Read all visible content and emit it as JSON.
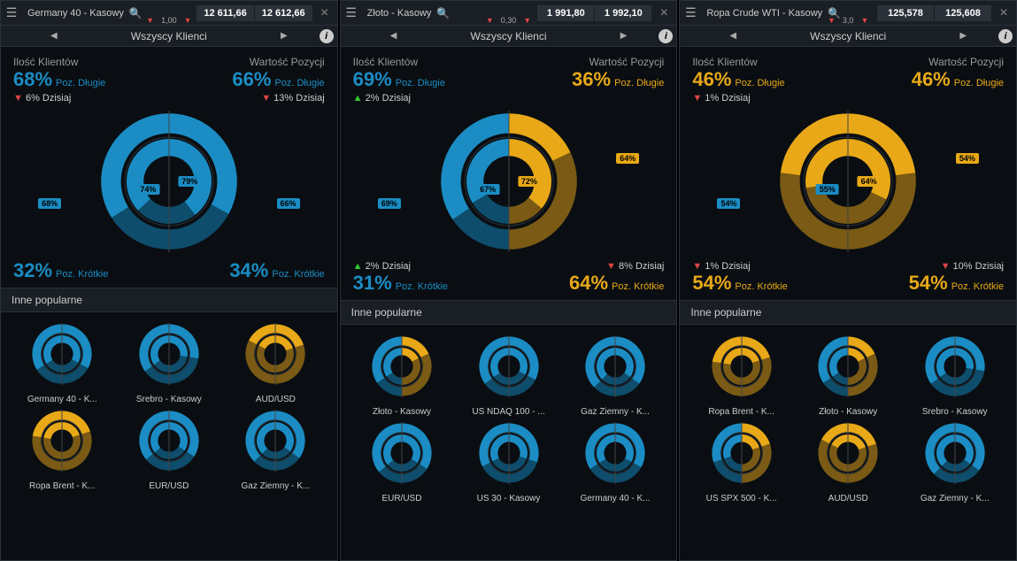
{
  "colors": {
    "blue": "#1b8dc4",
    "blueDark": "#0e4d6b",
    "yellow": "#e8a817",
    "yellowDark": "#7a5a15",
    "bg": "#0a0e12",
    "ring": "#2a3138"
  },
  "labels": {
    "clients": "Wszyscy Klienci",
    "qtyTitle": "Ilość Klientów",
    "valTitle": "Wartość Pozycji",
    "long": "Poz. Długie",
    "short": "Poz. Krótkie",
    "today": "Dzisiaj",
    "popular": "Inne popularne"
  },
  "panels": [
    {
      "instrument": "Germany 40 - Kasowy",
      "priceA": "12 611,66",
      "priceB": "12 612,66",
      "spread": "1,00",
      "qtyLong": 68,
      "valLong": 66,
      "qtyShort": 32,
      "valShort": 34,
      "qtyToday": -6,
      "valToday": -13,
      "innerLeft": 74,
      "innerRight": 79,
      "outerLeftBadge": 68,
      "outerRightBadge": 66,
      "popular": [
        {
          "name": "Germany 40 - K...",
          "a": 68,
          "b": 66
        },
        {
          "name": "Srebro - Kasowy",
          "a": 70,
          "b": 55
        },
        {
          "name": "AUD/USD",
          "a": 35,
          "b": 40
        },
        {
          "name": "Ropa Brent - K...",
          "a": 45,
          "b": 40
        },
        {
          "name": "EUR/USD",
          "a": 72,
          "b": 68
        },
        {
          "name": "Gaz Ziemny - K...",
          "a": 75,
          "b": 70
        }
      ]
    },
    {
      "instrument": "Złoto - Kasowy",
      "priceA": "1 991,80",
      "priceB": "1 992,10",
      "spread": "0,30",
      "qtyLong": 69,
      "valLong": 36,
      "qtyShort": 31,
      "valShort": 64,
      "qtyToday": 2,
      "valToday": -8,
      "innerLeft": 67,
      "innerRight": 72,
      "outerLeftBadge": 69,
      "outerRightBadge": 64,
      "popular": [
        {
          "name": "Złoto - Kasowy",
          "a": 69,
          "b": 36
        },
        {
          "name": "US NDAQ 100 - ...",
          "a": 70,
          "b": 65
        },
        {
          "name": "Gaz Ziemny - K...",
          "a": 75,
          "b": 70
        },
        {
          "name": "EUR/USD",
          "a": 72,
          "b": 68
        },
        {
          "name": "US 30 - Kasowy",
          "a": 65,
          "b": 60
        },
        {
          "name": "Germany 40 - K...",
          "a": 68,
          "b": 66
        }
      ]
    },
    {
      "instrument": "Ropa Crude WTI - Kasowy",
      "priceA": "125,578",
      "priceB": "125,608",
      "spread": "3,0",
      "qtyLong": 46,
      "valLong": 46,
      "qtyShort": 54,
      "valShort": 54,
      "qtyToday": -1,
      "valToday": -10,
      "innerLeft": 55,
      "innerRight": 64,
      "outerLeftBadge": 54,
      "outerRightBadge": 54,
      "popular": [
        {
          "name": "Ropa Brent - K...",
          "a": 45,
          "b": 40
        },
        {
          "name": "Złoto - Kasowy",
          "a": 69,
          "b": 36
        },
        {
          "name": "Srebro - Kasowy",
          "a": 70,
          "b": 55
        },
        {
          "name": "US SPX 500 - K...",
          "a": 60,
          "b": 40
        },
        {
          "name": "AUD/USD",
          "a": 35,
          "b": 40
        },
        {
          "name": "Gaz Ziemny - K...",
          "a": 75,
          "b": 70
        }
      ]
    }
  ]
}
